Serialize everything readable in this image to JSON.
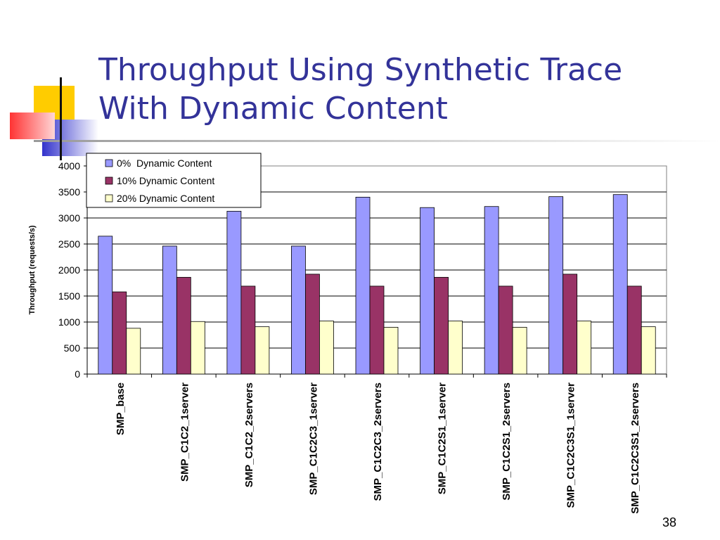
{
  "slide": {
    "title_lines": [
      "Throughput Using Synthetic Trace",
      "With Dynamic Content"
    ],
    "page_number": "38"
  },
  "colors": {
    "title": "#333399",
    "series": [
      "#9999ff",
      "#993366",
      "#ffffcc"
    ]
  },
  "chart_data": {
    "type": "bar",
    "title": "",
    "xlabel": "",
    "ylabel": "Throughput (requests/s)",
    "ylim": [
      0,
      4000
    ],
    "yticks": [
      0,
      500,
      1000,
      1500,
      2000,
      2500,
      3000,
      3500,
      4000
    ],
    "grid": true,
    "legend_position": "top-left",
    "categories": [
      "SMP_base",
      "SMP_C1C2_1server",
      "SMP_C1C2_2servers",
      "SMP_C1C2C3_1server",
      "SMP_C1C2C3_2servers",
      "SMP_C1C2S1_1server",
      "SMP_C1C2S1_2servers",
      "SMP_C1C2C3S1_1server",
      "SMP_C1C2C3S1_2servers"
    ],
    "series": [
      {
        "name": "0%  Dynamic Content",
        "values": [
          2650,
          2460,
          3130,
          2460,
          3400,
          3200,
          3220,
          3410,
          3450
        ]
      },
      {
        "name": "10% Dynamic Content",
        "values": [
          1580,
          1860,
          1690,
          1920,
          1690,
          1860,
          1690,
          1920,
          1690
        ]
      },
      {
        "name": "20% Dynamic Content",
        "values": [
          880,
          1010,
          910,
          1020,
          900,
          1020,
          900,
          1020,
          910
        ]
      }
    ]
  }
}
